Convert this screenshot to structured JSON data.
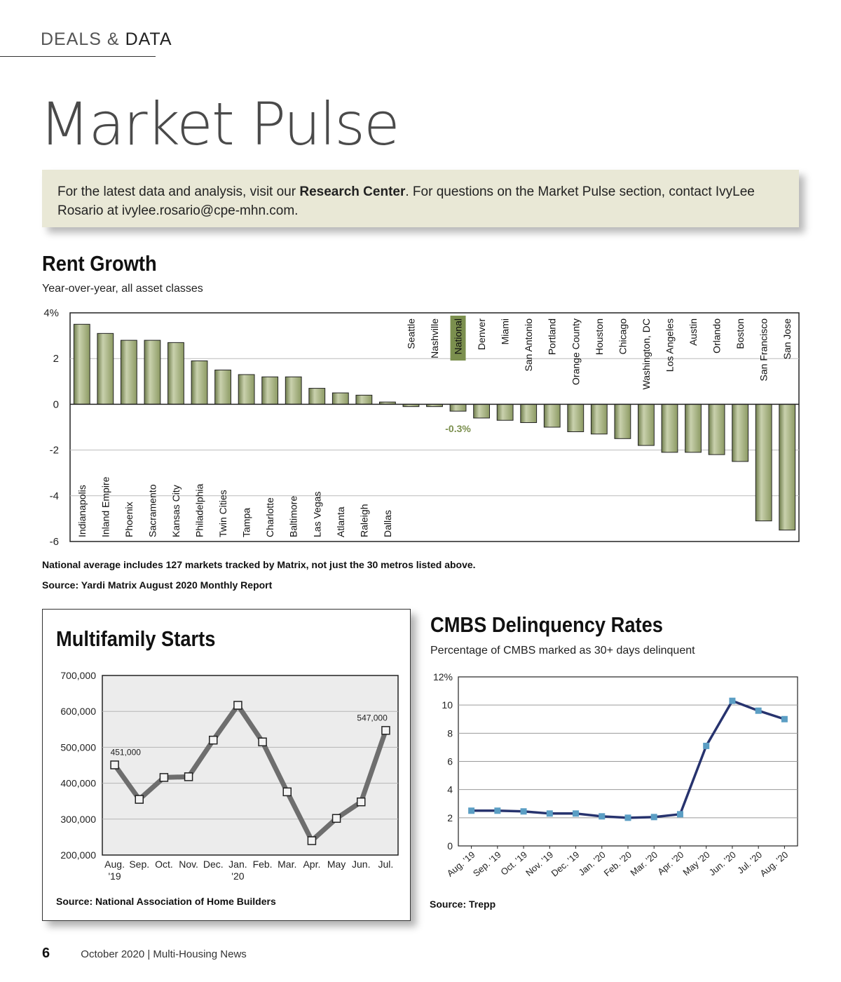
{
  "header": {
    "section_light": "DEALS &",
    "section_strong": "DATA",
    "title": "Market Pulse"
  },
  "info": {
    "before": "For the latest data and analysis, visit our ",
    "bold": "Research Center",
    "after": ". For questions on the Market Pulse section, contact IvyLee Rosario at ivylee.rosario@cpe-mhn.com."
  },
  "rent_growth": {
    "title": "Rent Growth",
    "subtitle": "Year-over-year, all asset classes",
    "note": "National average includes 127 markets tracked by Matrix, not just the 30 metros listed above.",
    "source": "Source: Yardi Matrix August 2020 Monthly Report"
  },
  "mf_starts": {
    "title": "Multifamily Starts",
    "source": "Source: National Association of Home Builders"
  },
  "cmbs": {
    "title": "CMBS Delinquency Rates",
    "subtitle": "Percentage of CMBS marked as 30+ days delinquent",
    "source": "Source: Trepp"
  },
  "footer": {
    "page": "6",
    "issue": "October 2020 | Multi-Housing News"
  },
  "colors": {
    "bar": "#9aa67a",
    "highlight": "#7b8f4e",
    "line_gray": "#6e6e6e",
    "line_navy": "#27336e",
    "marker_teal": "#5b9ec4",
    "box_bg": "#e9e8d6"
  },
  "chart_data": [
    {
      "type": "bar",
      "title": "Rent Growth",
      "ylim": [
        -6,
        4
      ],
      "yticks": [
        "4%",
        "2",
        "0",
        "-2",
        "-4",
        "-6"
      ],
      "grid": true,
      "highlight": "National",
      "highlight_label": "-0.3%",
      "categories": [
        "Indianapolis",
        "Inland Empire",
        "Phoenix",
        "Sacramento",
        "Kansas City",
        "Philadelphia",
        "Twin Cities",
        "Tampa",
        "Charlotte",
        "Baltimore",
        "Las Vegas",
        "Atlanta",
        "Raleigh",
        "Dallas",
        "Seattle",
        "Nashville",
        "National",
        "Denver",
        "Miami",
        "San Antonio",
        "Portland",
        "Orange County",
        "Houston",
        "Chicago",
        "Washington, DC",
        "Los Angeles",
        "Austin",
        "Orlando",
        "Boston",
        "San Francisco",
        "San Jose"
      ],
      "values": [
        3.5,
        3.1,
        2.8,
        2.8,
        2.7,
        1.9,
        1.5,
        1.3,
        1.2,
        1.2,
        0.7,
        0.5,
        0.4,
        0.1,
        -0.1,
        -0.1,
        -0.3,
        -0.6,
        -0.7,
        -0.8,
        -1.0,
        -1.2,
        -1.3,
        -1.5,
        -1.8,
        -2.1,
        -2.1,
        -2.2,
        -2.5,
        -5.1,
        -5.5
      ]
    },
    {
      "type": "line",
      "title": "Multifamily Starts",
      "ylim": [
        200000,
        700000
      ],
      "yticks": [
        "700,000",
        "600,000",
        "500,000",
        "400,000",
        "300,000",
        "200,000"
      ],
      "x": [
        "Aug.",
        "Sep.",
        "Oct.",
        "Nov.",
        "Dec.",
        "Jan.",
        "Feb.",
        "Mar.",
        "Apr.",
        "May",
        "Jun.",
        "Jul."
      ],
      "x_year": [
        "'19",
        "",
        "",
        "",
        "",
        "'20",
        "",
        "",
        "",
        "",
        "",
        ""
      ],
      "values": [
        451000,
        355000,
        416000,
        418000,
        520000,
        617000,
        515000,
        376000,
        240000,
        302000,
        348000,
        547000
      ],
      "labels": [
        {
          "index": 0,
          "text": "451,000"
        },
        {
          "index": 11,
          "text": "547,000"
        }
      ]
    },
    {
      "type": "line",
      "title": "CMBS Delinquency Rates",
      "ylim": [
        0,
        12
      ],
      "yticks": [
        "12%",
        "10",
        "8",
        "6",
        "4",
        "2",
        "0"
      ],
      "x": [
        "Aug. '19",
        "Sep. '19",
        "Oct. '19",
        "Nov. '19",
        "Dec. '19",
        "Jan. '20",
        "Feb. '20",
        "Mar. '20",
        "Apr. '20",
        "May '20",
        "Jun. '20",
        "Jul. '20",
        "Aug. '20"
      ],
      "values": [
        2.5,
        2.5,
        2.45,
        2.3,
        2.3,
        2.1,
        2.0,
        2.05,
        2.25,
        7.1,
        10.3,
        9.6,
        9.0
      ]
    }
  ]
}
